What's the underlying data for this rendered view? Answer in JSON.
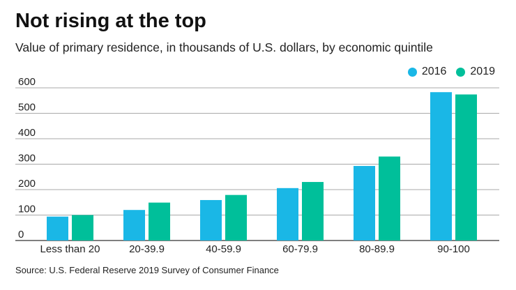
{
  "chart_data": {
    "type": "bar",
    "title": "Not rising at the top",
    "subtitle": "Value of primary residence, in thousands of U.S. dollars, by economic quintile",
    "categories": [
      "Less than 20",
      "20-39.9",
      "40-59.9",
      "60-79.9",
      "80-89.9",
      "90-100"
    ],
    "series": [
      {
        "name": "2016",
        "color": "#1ab7e6",
        "values": [
          94,
          120,
          159,
          206,
          293,
          583
        ]
      },
      {
        "name": "2019",
        "color": "#00bf9a",
        "values": [
          100,
          149,
          179,
          230,
          330,
          574
        ]
      }
    ],
    "yticks": [
      "0",
      "100",
      "200",
      "300",
      "400",
      "500",
      "600"
    ],
    "ylim": [
      0,
      600
    ],
    "xlabel": "",
    "ylabel": "",
    "grid": true,
    "legend_position": "top-right",
    "source": "Source: U.S. Federal Reserve 2019 Survey of Consumer Finance"
  }
}
